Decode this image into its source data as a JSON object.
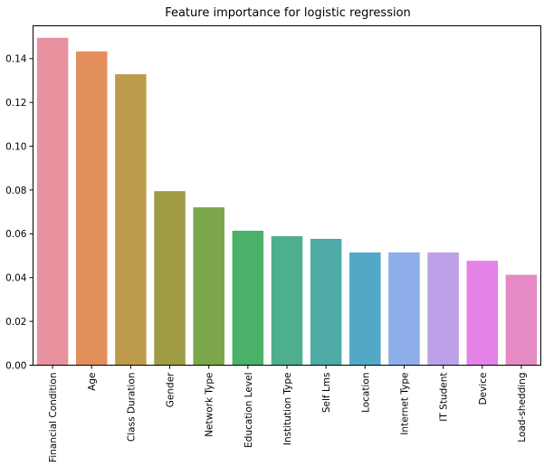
{
  "chart_data": {
    "type": "bar",
    "title": "Feature importance for logistic regression",
    "xlabel": "",
    "ylabel": "",
    "ylim": [
      0,
      0.155
    ],
    "yticks": [
      0.0,
      0.02,
      0.04,
      0.06,
      0.08,
      0.1,
      0.12,
      0.14
    ],
    "ytick_labels": [
      "0.00",
      "0.02",
      "0.04",
      "0.06",
      "0.08",
      "0.10",
      "0.12",
      "0.14"
    ],
    "grid": false,
    "categories": [
      "Financial Condition",
      "Age",
      "Class Duration",
      "Gender",
      "Network Type",
      "Education Level",
      "Institution Type",
      "Self Lms",
      "Location",
      "Internet Type",
      "IT Student",
      "Device",
      "Load-shedding"
    ],
    "values": [
      0.1495,
      0.1433,
      0.1329,
      0.0795,
      0.0721,
      0.0614,
      0.0589,
      0.0577,
      0.0515,
      0.0515,
      0.0515,
      0.0477,
      0.0413
    ],
    "colors": [
      "#e8919f",
      "#e28f5c",
      "#bc9c4c",
      "#a09b45",
      "#7ba74a",
      "#4bb169",
      "#4daf8e",
      "#4eaba5",
      "#53a8c7",
      "#8daee8",
      "#bca1e8",
      "#e582e8",
      "#e58ac2"
    ]
  }
}
